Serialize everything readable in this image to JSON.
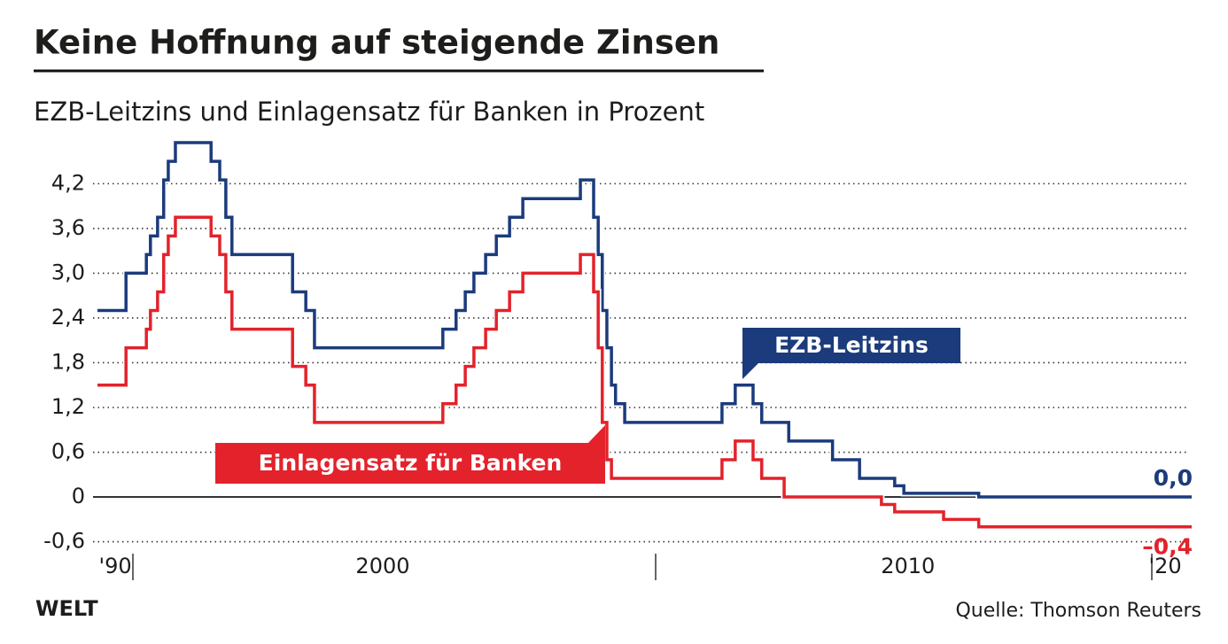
{
  "chart_data": {
    "type": "step-line",
    "title": "Keine Hoffnung auf steigende Zinsen",
    "subtitle": "EZB-Leitzins und Einlagensatz für Banken in Prozent",
    "source": "Quelle: Thomson Reuters",
    "brand": "WELT",
    "x": [
      1999.0,
      1999.56,
      1999.96,
      2000.04,
      2000.18,
      2000.3,
      2000.39,
      2000.53,
      2001.23,
      2001.4,
      2001.52,
      2001.64,
      2002.83,
      2003.09,
      2003.26,
      2005.78,
      2006.04,
      2006.22,
      2006.39,
      2006.62,
      2006.83,
      2007.09,
      2007.35,
      2008.48,
      2008.74,
      2008.83,
      2008.91,
      2009.0,
      2009.09,
      2009.17,
      2009.35,
      2011.26,
      2011.52,
      2011.87,
      2012.04,
      2012.48,
      2012.57,
      2013.43,
      2013.96,
      2014.39,
      2014.65,
      2014.83,
      2015.61,
      2016.3,
      2020.48
    ],
    "series": [
      {
        "name": "EZB-Leitzins",
        "color": "#1b3b7c",
        "values": [
          2.5,
          3.0,
          3.25,
          3.5,
          3.75,
          4.25,
          4.5,
          4.75,
          4.5,
          4.25,
          3.75,
          3.25,
          2.75,
          2.5,
          2.0,
          2.25,
          2.5,
          2.75,
          3.0,
          3.25,
          3.5,
          3.75,
          4.0,
          4.25,
          3.75,
          3.25,
          2.5,
          2.0,
          1.5,
          1.25,
          1.0,
          1.25,
          1.5,
          1.25,
          1.0,
          1.0,
          0.75,
          0.5,
          0.25,
          0.25,
          0.15,
          0.05,
          0.05,
          0.0,
          0.0
        ],
        "value_labels": [
          null,
          null,
          null,
          null,
          null,
          null,
          null,
          null,
          null,
          null,
          null,
          null,
          null,
          null,
          null,
          null,
          null,
          null,
          null,
          null,
          null,
          null,
          null,
          null,
          null,
          null,
          null,
          null,
          null,
          null,
          null,
          null,
          null,
          null,
          null,
          null,
          null,
          null,
          null,
          null,
          null,
          null,
          null,
          null,
          "0,0"
        ]
      },
      {
        "name": "Einlagensatz für Banken",
        "color": "#e3222b",
        "values": [
          1.5,
          2.0,
          2.25,
          2.5,
          2.75,
          3.25,
          3.5,
          3.75,
          3.5,
          3.25,
          2.75,
          2.25,
          1.75,
          1.5,
          1.0,
          1.25,
          1.5,
          1.75,
          2.0,
          2.25,
          2.5,
          2.75,
          3.0,
          3.25,
          2.75,
          2.0,
          1.0,
          0.5,
          0.25,
          0.25,
          0.25,
          0.5,
          0.75,
          0.5,
          0.25,
          0.0,
          0.0,
          0.0,
          0.0,
          -0.1,
          -0.2,
          -0.2,
          -0.3,
          -0.4,
          -0.4
        ],
        "value_labels": [
          null,
          null,
          null,
          null,
          null,
          null,
          null,
          null,
          null,
          null,
          null,
          null,
          null,
          null,
          null,
          null,
          null,
          null,
          null,
          null,
          null,
          null,
          null,
          null,
          null,
          null,
          null,
          null,
          null,
          null,
          null,
          null,
          null,
          null,
          null,
          null,
          null,
          null,
          null,
          null,
          null,
          null,
          null,
          null,
          "–0,4"
        ]
      }
    ],
    "xlim": [
      1999.0,
      2020.48
    ],
    "xticks": [
      {
        "value": 1999.35,
        "label": "'90"
      },
      {
        "value": 2004.6,
        "label": "2000"
      },
      {
        "value": 2014.91,
        "label": "2010"
      },
      {
        "value": 2019.96,
        "label": "'20"
      }
    ],
    "ylim": [
      -0.7,
      5.0
    ],
    "yticks": [
      {
        "value": -0.6,
        "label": "-0,6"
      },
      0,
      {
        "value": 0.6,
        "label": "0,6"
      },
      {
        "value": 1.2,
        "label": "1,2"
      },
      {
        "value": 1.8,
        "label": "1,8"
      },
      {
        "value": 2.4,
        "label": "2,4"
      },
      {
        "value": 3.0,
        "label": "3,0"
      },
      {
        "value": 3.6,
        "label": "3,6"
      },
      {
        "value": 4.2,
        "label": "4,2"
      }
    ],
    "grid": true
  }
}
